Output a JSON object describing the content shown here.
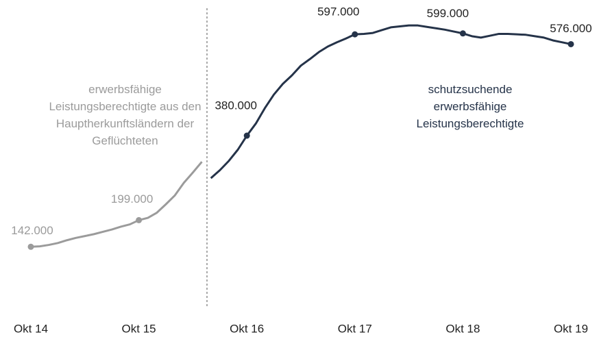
{
  "chart_data": {
    "type": "line",
    "categories": [
      "Okt 14",
      null,
      null,
      null,
      null,
      null,
      null,
      null,
      null,
      null,
      null,
      null,
      "Okt 15",
      null,
      null,
      null,
      null,
      null,
      null,
      null,
      null,
      null,
      null,
      null,
      "Okt 16",
      null,
      null,
      null,
      null,
      null,
      null,
      null,
      null,
      null,
      null,
      null,
      "Okt 17",
      null,
      null,
      null,
      null,
      null,
      null,
      null,
      null,
      null,
      null,
      null,
      "Okt 18",
      null,
      null,
      null,
      null,
      null,
      null,
      null,
      null,
      null,
      null,
      null,
      "Okt 19"
    ],
    "ylim": [
      50000,
      650000
    ],
    "series": [
      {
        "name": "erwerbsfähige Leistungsberechtigte aus den Hauptherkunftsländern der Geflüchteten",
        "color": "#9b9b9b",
        "values": [
          142000,
          143000,
          146000,
          150000,
          156000,
          161000,
          165000,
          169000,
          174000,
          179000,
          185000,
          190000,
          199000,
          204000,
          215000,
          233000,
          252000,
          279000,
          301000,
          324000,
          null,
          null,
          null,
          null,
          null,
          null,
          null,
          null,
          null,
          null,
          null,
          null,
          null,
          null,
          null,
          null,
          null,
          null,
          null,
          null,
          null,
          null,
          null,
          null,
          null,
          null,
          null,
          null,
          null,
          null,
          null,
          null,
          null,
          null,
          null,
          null,
          null,
          null,
          null,
          null,
          null
        ],
        "value_labels": [
          "142.000",
          null,
          null,
          null,
          null,
          null,
          null,
          null,
          null,
          null,
          null,
          null,
          "199.000",
          null,
          null,
          null,
          null,
          null,
          null,
          null,
          null,
          null,
          null,
          null,
          null,
          null,
          null,
          null,
          null,
          null,
          null,
          null,
          null,
          null,
          null,
          null,
          null,
          null,
          null,
          null,
          null,
          null,
          null,
          null,
          null,
          null,
          null,
          null,
          null,
          null,
          null,
          null,
          null,
          null,
          null,
          null,
          null,
          null,
          null,
          null,
          null
        ]
      },
      {
        "name": "schutzsuchende erwerbsfähige Leistungsberechtigte",
        "color": "#253349",
        "values": [
          null,
          null,
          null,
          null,
          null,
          null,
          null,
          null,
          null,
          null,
          null,
          null,
          null,
          null,
          null,
          null,
          null,
          null,
          null,
          null,
          289000,
          306000,
          326000,
          350000,
          380000,
          406000,
          439000,
          468000,
          491000,
          509000,
          530000,
          544000,
          559000,
          571000,
          580000,
          588000,
          597000,
          598000,
          600000,
          606000,
          612000,
          614000,
          616000,
          616000,
          613000,
          610000,
          607000,
          603000,
          599000,
          593000,
          590000,
          594000,
          598000,
          598000,
          597000,
          596000,
          593000,
          590000,
          584000,
          580000,
          576000
        ],
        "value_labels": [
          null,
          null,
          null,
          null,
          null,
          null,
          null,
          null,
          null,
          null,
          null,
          null,
          null,
          null,
          null,
          null,
          null,
          null,
          null,
          null,
          null,
          null,
          null,
          null,
          "380.000",
          null,
          null,
          null,
          null,
          null,
          null,
          null,
          null,
          null,
          null,
          null,
          "597.000",
          null,
          null,
          null,
          null,
          null,
          null,
          null,
          null,
          null,
          null,
          null,
          "599.000",
          null,
          null,
          null,
          null,
          null,
          null,
          null,
          null,
          null,
          null,
          null,
          "576.000"
        ]
      }
    ]
  }
}
